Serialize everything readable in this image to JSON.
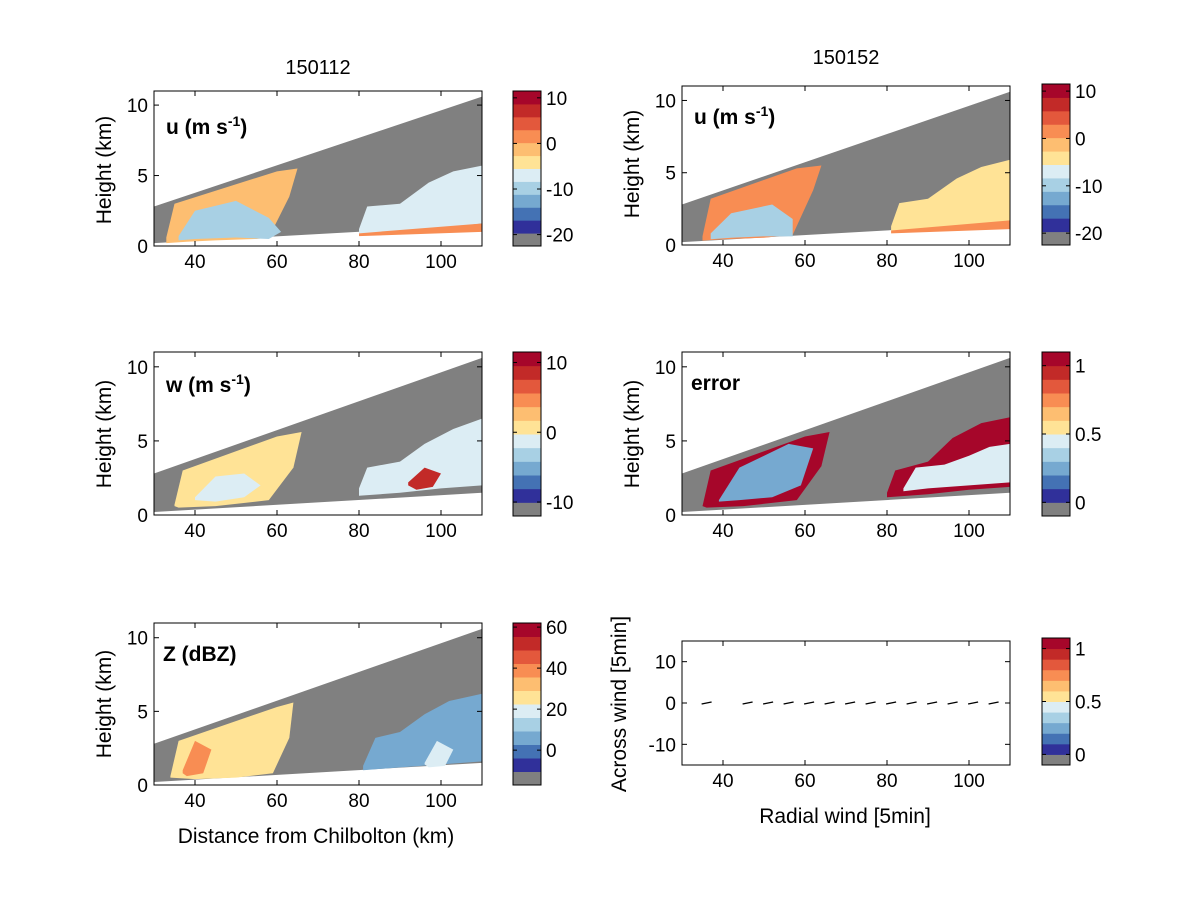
{
  "figure": {
    "col_titles": [
      "150112",
      "150152"
    ]
  },
  "colors": {
    "missing": "#808080",
    "palette": [
      "#30309a",
      "#4472b4",
      "#76a9d0",
      "#a8d0e4",
      "#dcedf4",
      "#ffe396",
      "#fdbe71",
      "#f88d53",
      "#e3583c",
      "#c22a28",
      "#a6062a"
    ]
  },
  "chart_data": [
    {
      "type": "heatmap",
      "title": "150112",
      "panel_label": "u (m s",
      "panel_label_sup": "-1",
      "ylabel": "Height (km)",
      "xlabel": "",
      "xlim": [
        30,
        110
      ],
      "ylim": [
        0,
        11
      ],
      "xticks": [
        40,
        60,
        80,
        100
      ],
      "yticks": [
        0,
        5,
        10
      ],
      "colorbar": {
        "ticks": [
          10,
          0,
          -10,
          -20
        ],
        "range": [
          -22.5,
          11.5
        ]
      },
      "regions": [
        {
          "x": [
            33,
            35,
            60,
            65,
            63,
            58,
            55,
            45,
            38,
            33
          ],
          "y": [
            0.6,
            3.0,
            5.3,
            5.5,
            3.5,
            0.6,
            0.5,
            0.4,
            0.3,
            0.2
          ],
          "value": 0
        },
        {
          "x": [
            36,
            40,
            50,
            58,
            61,
            58,
            50,
            40,
            36
          ],
          "y": [
            0.7,
            2.5,
            3.2,
            2.0,
            1.0,
            0.5,
            0.6,
            0.5,
            0.4
          ],
          "value": -10
        },
        {
          "x": [
            80,
            82,
            90,
            97,
            103,
            110,
            110,
            104,
            95,
            85,
            80
          ],
          "y": [
            1.2,
            2.8,
            3.0,
            4.5,
            5.3,
            5.7,
            1.6,
            1.4,
            1.1,
            0.9,
            0.9
          ],
          "value": -6
        },
        {
          "x": [
            80,
            110,
            110,
            80
          ],
          "y": [
            0.9,
            1.6,
            1.0,
            0.7
          ],
          "value": 2
        }
      ]
    },
    {
      "type": "heatmap",
      "title": "150152",
      "panel_label": "u (m s",
      "panel_label_sup": "-1",
      "ylabel": "Height (km)",
      "xlabel": "",
      "xlim": [
        30,
        110
      ],
      "ylim": [
        0,
        11
      ],
      "xticks": [
        40,
        60,
        80,
        100
      ],
      "yticks": [
        0,
        5,
        10
      ],
      "colorbar": {
        "ticks": [
          10,
          0,
          -10,
          -20
        ],
        "range": [
          -22.5,
          11.5
        ]
      },
      "regions": [
        {
          "x": [
            35,
            37,
            58,
            64,
            62,
            57,
            50,
            40,
            35
          ],
          "y": [
            0.6,
            3.2,
            5.3,
            5.5,
            3.8,
            0.7,
            0.5,
            0.4,
            0.3
          ],
          "value": 1
        },
        {
          "x": [
            37,
            42,
            52,
            57,
            57,
            50,
            42,
            37
          ],
          "y": [
            0.8,
            2.2,
            2.8,
            1.8,
            0.6,
            0.6,
            0.5,
            0.4
          ],
          "value": -10
        },
        {
          "x": [
            81,
            83,
            90,
            97,
            103,
            110,
            110,
            104,
            95,
            86,
            81
          ],
          "y": [
            1.3,
            2.9,
            3.2,
            4.6,
            5.4,
            5.9,
            1.7,
            1.4,
            1.2,
            1.0,
            1.0
          ],
          "value": -5
        },
        {
          "x": [
            81,
            110,
            110,
            81
          ],
          "y": [
            1.0,
            1.7,
            1.1,
            0.8
          ],
          "value": 2
        }
      ]
    },
    {
      "type": "heatmap",
      "panel_label": "w (m s",
      "panel_label_sup": "-1",
      "ylabel": "Height (km)",
      "xlabel": "",
      "xlim": [
        30,
        110
      ],
      "ylim": [
        0,
        11
      ],
      "xticks": [
        40,
        60,
        80,
        100
      ],
      "yticks": [
        0,
        5,
        10
      ],
      "colorbar": {
        "ticks": [
          10,
          0,
          -10
        ],
        "range": [
          -12,
          11.5
        ]
      },
      "regions": [
        {
          "x": [
            35,
            37,
            60,
            66,
            64,
            58,
            45,
            36,
            35
          ],
          "y": [
            0.7,
            3.0,
            5.3,
            5.6,
            3.2,
            1.0,
            0.6,
            0.5,
            0.6
          ],
          "value": 0
        },
        {
          "x": [
            40,
            45,
            52,
            56,
            52,
            45,
            40
          ],
          "y": [
            1.2,
            2.6,
            2.8,
            2.0,
            1.2,
            0.9,
            1.0
          ],
          "value": -2
        },
        {
          "x": [
            80,
            82,
            90,
            96,
            103,
            110,
            110,
            100,
            90,
            80
          ],
          "y": [
            1.8,
            3.2,
            3.6,
            4.8,
            5.8,
            6.5,
            2.0,
            1.8,
            1.5,
            1.3
          ],
          "value": -2
        },
        {
          "x": [
            92,
            96,
            100,
            98,
            94,
            92
          ],
          "y": [
            2.2,
            3.2,
            2.8,
            1.9,
            1.7,
            2.0
          ],
          "value": 8
        }
      ]
    },
    {
      "type": "heatmap",
      "panel_label": "error",
      "ylabel": "Height (km)",
      "xlabel": "",
      "xlim": [
        30,
        110
      ],
      "ylim": [
        0,
        11
      ],
      "xticks": [
        40,
        60,
        80,
        100
      ],
      "yticks": [
        0,
        5,
        10
      ],
      "colorbar": {
        "ticks": [
          1,
          0.5,
          0
        ],
        "range": [
          -0.1,
          1.1
        ]
      },
      "regions": [
        {
          "x": [
            35,
            37,
            60,
            66,
            64,
            58,
            45,
            36,
            35
          ],
          "y": [
            0.6,
            3.0,
            5.3,
            5.6,
            3.3,
            1.0,
            0.6,
            0.5,
            0.6
          ],
          "value": 1.05
        },
        {
          "x": [
            39,
            44,
            56,
            62,
            59,
            52,
            44,
            39
          ],
          "y": [
            1.0,
            3.2,
            4.8,
            4.5,
            2.0,
            1.2,
            1.0,
            0.9
          ],
          "value": 0.2
        },
        {
          "x": [
            80,
            82,
            90,
            96,
            103,
            110,
            110,
            100,
            90,
            80
          ],
          "y": [
            1.5,
            3.0,
            3.6,
            5.2,
            6.2,
            6.6,
            1.9,
            1.7,
            1.4,
            1.2
          ],
          "value": 1.05
        },
        {
          "x": [
            84,
            87,
            94,
            100,
            105,
            110,
            110,
            100,
            90,
            84
          ],
          "y": [
            1.8,
            3.2,
            3.4,
            4.0,
            4.6,
            4.8,
            2.2,
            2.0,
            1.8,
            1.6
          ],
          "value": 0.4
        }
      ]
    },
    {
      "type": "heatmap",
      "panel_label": "Z (dBZ)",
      "ylabel": "Height (km)",
      "xlabel": "Distance from Chilbolton (km)",
      "xlim": [
        30,
        110
      ],
      "ylim": [
        0,
        11
      ],
      "xticks": [
        40,
        60,
        80,
        100
      ],
      "yticks": [
        0,
        5,
        10
      ],
      "colorbar": {
        "ticks": [
          60,
          40,
          20,
          0
        ],
        "range": [
          -17,
          62
        ]
      },
      "regions": [
        {
          "x": [
            34,
            36,
            60,
            64,
            63,
            59,
            50,
            40,
            34
          ],
          "y": [
            0.6,
            3.0,
            5.3,
            5.6,
            3.2,
            0.8,
            0.5,
            0.4,
            0.5
          ],
          "value": 24
        },
        {
          "x": [
            37,
            40,
            44,
            42,
            38,
            37
          ],
          "y": [
            1.0,
            3.0,
            2.4,
            0.8,
            0.6,
            0.8
          ],
          "value": 38
        },
        {
          "x": [
            81,
            84,
            90,
            96,
            102,
            110,
            110,
            100,
            90,
            81
          ],
          "y": [
            1.3,
            3.2,
            3.6,
            4.8,
            5.7,
            6.2,
            1.6,
            1.4,
            1.2,
            1.0
          ],
          "value": 5
        },
        {
          "x": [
            96,
            99,
            103,
            101,
            97,
            96
          ],
          "y": [
            1.5,
            3.0,
            2.4,
            1.3,
            1.2,
            1.4
          ],
          "value": 22
        }
      ]
    },
    {
      "type": "scatter",
      "ylabel": "Across wind [5min]",
      "xlabel": "Radial wind [5min]",
      "xlim": [
        30,
        110
      ],
      "ylim": [
        -15,
        15
      ],
      "xticks": [
        40,
        60,
        80,
        100
      ],
      "yticks": [
        10,
        0,
        -10
      ],
      "colorbar": {
        "ticks": [
          1,
          0.5,
          0
        ],
        "range": [
          -0.1,
          1.1
        ]
      },
      "points_x": [
        36,
        46,
        51,
        56,
        61,
        66,
        71,
        76,
        81,
        86,
        91,
        96,
        101,
        106
      ],
      "points_y": [
        0,
        0,
        0,
        0,
        0,
        0,
        0,
        0,
        0,
        0,
        0,
        0,
        0,
        0
      ]
    }
  ]
}
